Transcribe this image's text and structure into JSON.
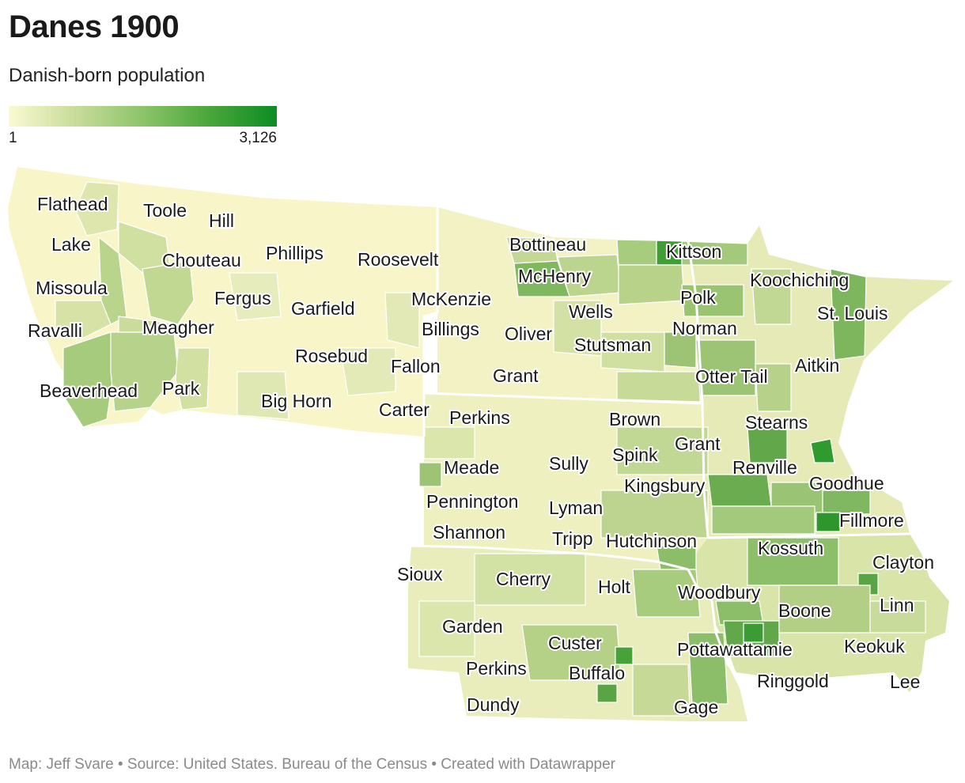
{
  "title": "Danes 1900",
  "subtitle": "Danish-born population",
  "legend": {
    "min": "1",
    "max": "3,126",
    "colors": [
      "#fafad2",
      "#c8dc9a",
      "#8cc46a",
      "#4aa63a",
      "#0c8c24"
    ]
  },
  "footer": "Map: Jeff Svare • Source: United States. Bureau of the Census • Created with Datawrapper",
  "map": {
    "labels": [
      "Flathead",
      "Toole",
      "Hill",
      "Lake",
      "Chouteau",
      "Phillips",
      "Roosevelt",
      "Bottineau",
      "Kittson",
      "Missoula",
      "McHenry",
      "Koochiching",
      "Fergus",
      "Garfield",
      "McKenzie",
      "Polk",
      "Ravalli",
      "Meagher",
      "Billings",
      "Wells",
      "St. Louis",
      "Oliver",
      "Norman",
      "Stutsman",
      "Rosebud",
      "Aitkin",
      "Fallon",
      "Grant",
      "Otter Tail",
      "Beaverhead",
      "Park",
      "Big Horn",
      "Carter",
      "Perkins",
      "Brown",
      "Stearns",
      "Grant",
      "Spink",
      "Sully",
      "Meade",
      "Renville",
      "Kingsbury",
      "Goodhue",
      "Pennington",
      "Lyman",
      "Fillmore",
      "Shannon",
      "Tripp",
      "Hutchinson",
      "Kossuth",
      "Clayton",
      "Sioux",
      "Cherry",
      "Holt",
      "Woodbury",
      "Linn",
      "Boone",
      "Garden",
      "Custer",
      "Pottawattamie",
      "Keokuk",
      "Perkins",
      "Buffalo",
      "Ringgold",
      "Lee",
      "Dundy",
      "Gage"
    ]
  }
}
